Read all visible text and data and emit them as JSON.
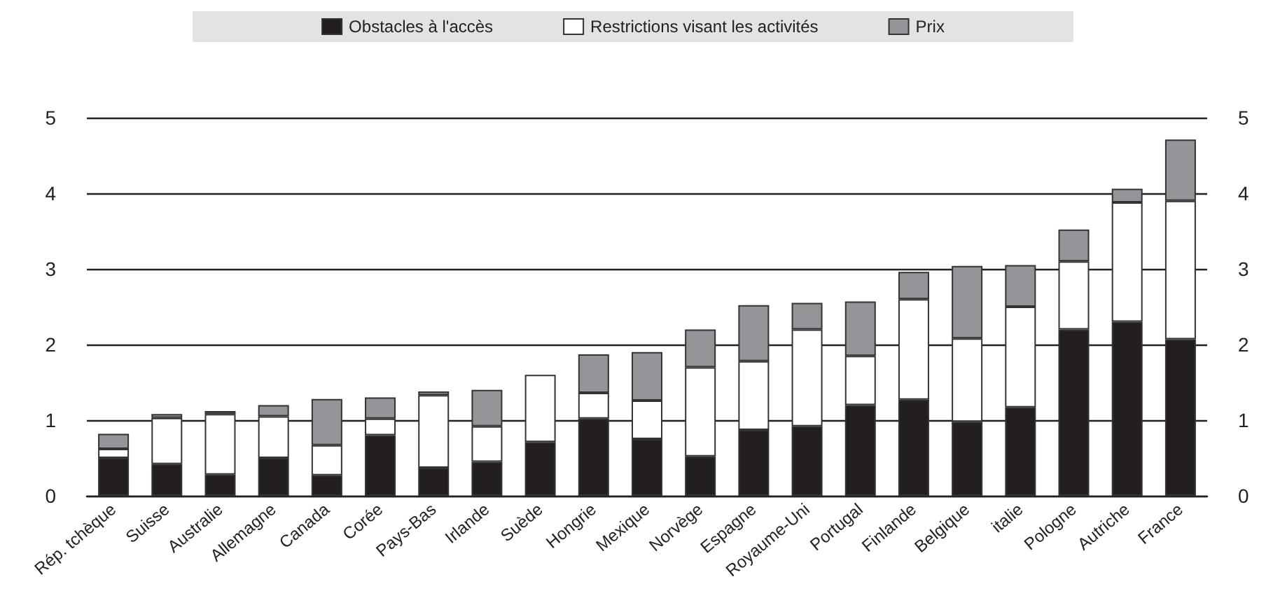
{
  "chart_data": {
    "type": "bar",
    "stacked": true,
    "categories": [
      "Rép. tchèque",
      "Suisse",
      "Australie",
      "Allemagne",
      "Canada",
      "Corée",
      "Pays-Bas",
      "Irlande",
      "Suède",
      "Hongrie",
      "Mexique",
      "Norvège",
      "Espagne",
      "Royaume-Uni",
      "Portugal",
      "Finlande",
      "Belgique",
      "italie",
      "Pologne",
      "Autriche",
      "France"
    ],
    "series": [
      {
        "name": "Obstacles à l'accès",
        "color": "#231f20",
        "values": [
          0.5,
          0.42,
          0.28,
          0.5,
          0.27,
          0.8,
          0.37,
          0.45,
          0.71,
          1.02,
          0.75,
          0.52,
          0.87,
          0.92,
          1.2,
          1.27,
          0.98,
          1.17,
          2.2,
          2.3,
          2.07
        ]
      },
      {
        "name": "Restrictions visant les activités",
        "color": "#ffffff",
        "values": [
          0.12,
          0.61,
          0.8,
          0.55,
          0.4,
          0.22,
          0.96,
          0.47,
          0.89,
          0.34,
          0.51,
          1.18,
          0.91,
          1.28,
          0.65,
          1.33,
          1.1,
          1.33,
          0.9,
          1.58,
          1.83
        ]
      },
      {
        "name": "Prix",
        "color": "#939598",
        "values": [
          0.2,
          0.05,
          0.04,
          0.15,
          0.61,
          0.28,
          0.05,
          0.48,
          0,
          0.51,
          0.64,
          0.5,
          0.74,
          0.35,
          0.72,
          0.36,
          0.96,
          0.55,
          0.42,
          0.18,
          0.81
        ]
      }
    ],
    "ylim": [
      0,
      5
    ],
    "yticks": [
      0,
      1,
      2,
      3,
      4,
      5
    ],
    "y2lim": [
      0,
      5
    ],
    "y2ticks": [
      0,
      1,
      2,
      3,
      4,
      5
    ],
    "grid": "y",
    "legend": "top"
  }
}
